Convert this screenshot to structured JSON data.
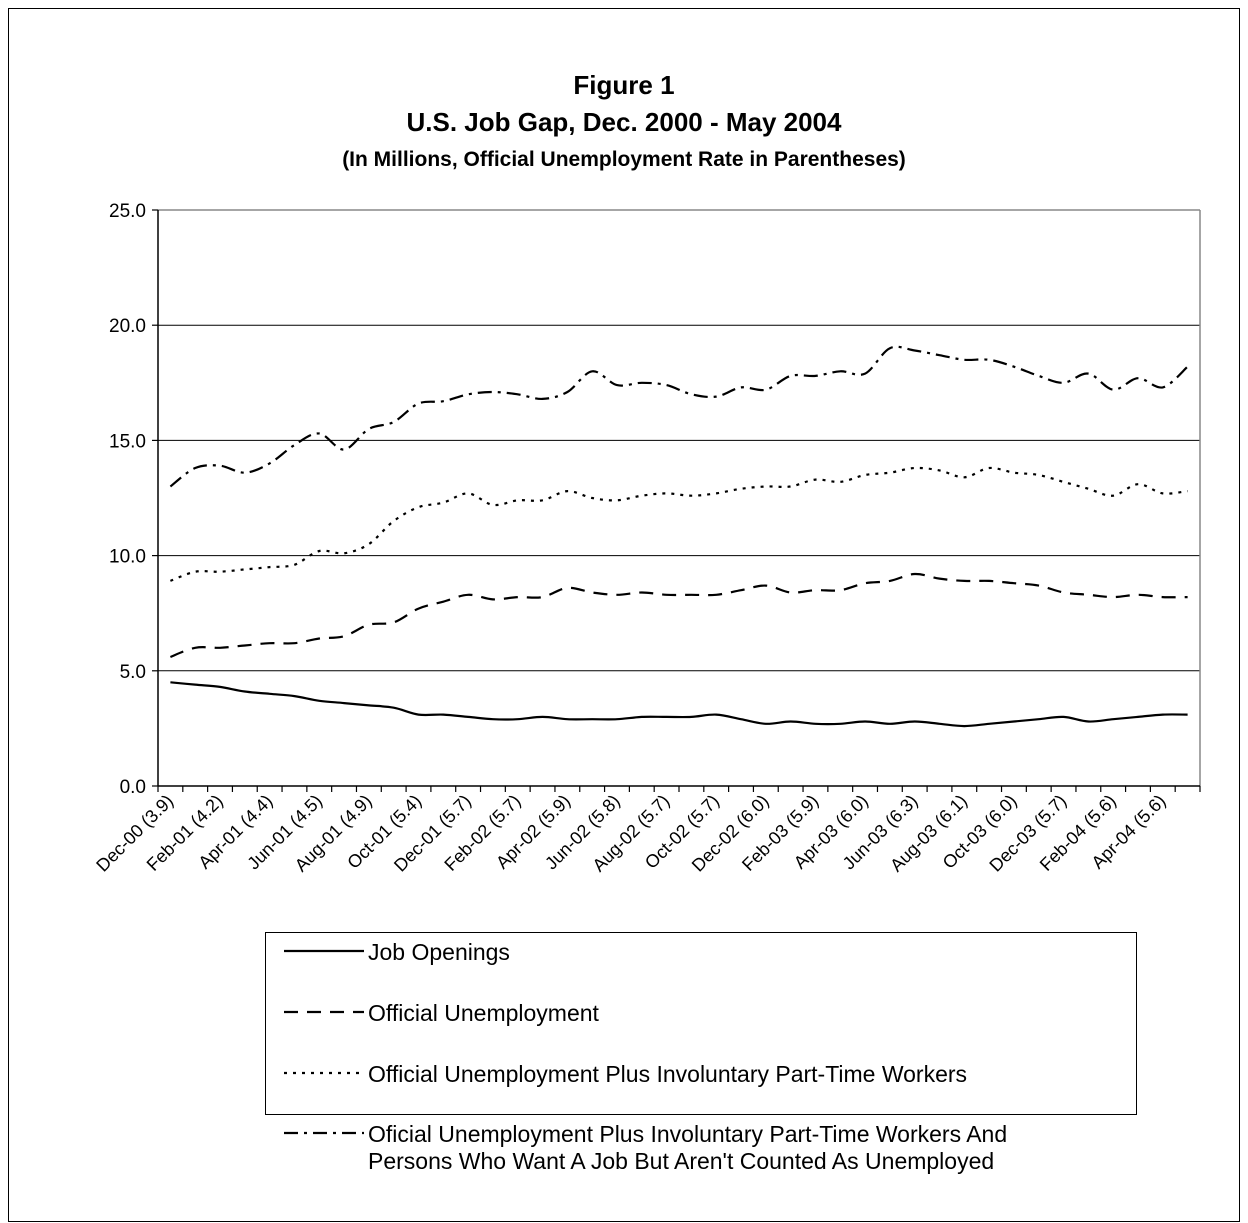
{
  "chart_data": {
    "type": "line",
    "title": "Figure 1",
    "subtitle": "U.S. Job Gap, Dec. 2000 - May 2004",
    "subsubtitle": "(In Millions, Official Unemployment Rate in Parentheses)",
    "xlabel": "",
    "ylabel": "",
    "ylim": [
      0,
      25
    ],
    "yticks": [
      "0.0",
      "5.0",
      "10.0",
      "15.0",
      "20.0",
      "25.0"
    ],
    "grid": "horizontal major gridlines",
    "legend_position": "bottom",
    "x": [
      "Dec-00",
      "Jan-01",
      "Feb-01",
      "Mar-01",
      "Apr-01",
      "May-01",
      "Jun-01",
      "Jul-01",
      "Aug-01",
      "Sep-01",
      "Oct-01",
      "Nov-01",
      "Dec-01",
      "Jan-02",
      "Feb-02",
      "Mar-02",
      "Apr-02",
      "May-02",
      "Jun-02",
      "Jul-02",
      "Aug-02",
      "Sep-02",
      "Oct-02",
      "Nov-02",
      "Dec-02",
      "Jan-03",
      "Feb-03",
      "Mar-03",
      "Apr-03",
      "May-03",
      "Jun-03",
      "Jul-03",
      "Aug-03",
      "Sep-03",
      "Oct-03",
      "Nov-03",
      "Dec-03",
      "Jan-04",
      "Feb-04",
      "Mar-04",
      "Apr-04",
      "May-04"
    ],
    "xtick_labels": [
      "Dec-00 (3.9)",
      "Feb-01 (4.2)",
      "Apr-01 (4.4)",
      "Jun-01 (4.5)",
      "Aug-01 (4.9)",
      "Oct-01 (5.4)",
      "Dec-01 (5.7)",
      "Feb-02 (5.7)",
      "Apr-02 (5.9)",
      "Jun-02 (5.8)",
      "Aug-02 (5.7)",
      "Oct-02 (5.7)",
      "Dec-02 (6.0)",
      "Feb-03 (5.9)",
      "Apr-03 (6.0)",
      "Jun-03 (6.3)",
      "Aug-03 (6.1)",
      "Oct-03 (6.0)",
      "Dec-03 (5.7)",
      "Feb-04 (5.6)",
      "Apr-04 (5.6)"
    ],
    "series": [
      {
        "name": "Job Openings",
        "style": "solid",
        "values": [
          4.5,
          4.4,
          4.3,
          4.1,
          4.0,
          3.9,
          3.7,
          3.6,
          3.5,
          3.4,
          3.1,
          3.1,
          3.0,
          2.9,
          2.9,
          3.0,
          2.9,
          2.9,
          2.9,
          3.0,
          3.0,
          3.0,
          3.1,
          2.9,
          2.7,
          2.8,
          2.7,
          2.7,
          2.8,
          2.7,
          2.8,
          2.7,
          2.6,
          2.7,
          2.8,
          2.9,
          3.0,
          2.8,
          2.9,
          3.0,
          3.1,
          3.1
        ]
      },
      {
        "name": "Official Unemployment",
        "style": "long-dash",
        "values": [
          5.6,
          6.0,
          6.0,
          6.1,
          6.2,
          6.2,
          6.4,
          6.5,
          7.0,
          7.1,
          7.7,
          8.0,
          8.3,
          8.1,
          8.2,
          8.2,
          8.6,
          8.4,
          8.3,
          8.4,
          8.3,
          8.3,
          8.3,
          8.5,
          8.7,
          8.4,
          8.5,
          8.5,
          8.8,
          8.9,
          9.2,
          9.0,
          8.9,
          8.9,
          8.8,
          8.7,
          8.4,
          8.3,
          8.2,
          8.3,
          8.2,
          8.2
        ]
      },
      {
        "name": "Official Unemployment Plus Involuntary Part-Time Workers",
        "style": "dotted",
        "values": [
          8.9,
          9.3,
          9.3,
          9.4,
          9.5,
          9.6,
          10.2,
          10.1,
          10.5,
          11.5,
          12.1,
          12.3,
          12.7,
          12.2,
          12.4,
          12.4,
          12.8,
          12.5,
          12.4,
          12.6,
          12.7,
          12.6,
          12.7,
          12.9,
          13.0,
          13.0,
          13.3,
          13.2,
          13.5,
          13.6,
          13.8,
          13.7,
          13.4,
          13.8,
          13.6,
          13.5,
          13.2,
          12.9,
          12.6,
          13.1,
          12.7,
          12.8
        ]
      },
      {
        "name": "Oficial Unemployment Plus Involuntary Part-Time Workers And Persons Who Want A Job But Aren't Counted As Unemployed",
        "style": "dash-dot",
        "values": [
          13.0,
          13.8,
          13.9,
          13.6,
          14.0,
          14.8,
          15.3,
          14.6,
          15.5,
          15.8,
          16.6,
          16.7,
          17.0,
          17.1,
          17.0,
          16.8,
          17.1,
          18.0,
          17.4,
          17.5,
          17.4,
          17.0,
          16.9,
          17.3,
          17.2,
          17.8,
          17.8,
          18.0,
          17.9,
          19.0,
          18.9,
          18.7,
          18.5,
          18.5,
          18.2,
          17.8,
          17.5,
          17.9,
          17.2,
          17.7,
          17.3,
          18.2
        ]
      }
    ]
  },
  "legend": {
    "item1": "Job Openings",
    "item2": "Official Unemployment",
    "item3": "Official Unemployment Plus Involuntary Part-Time Workers",
    "item4_line1": "Oficial Unemployment Plus Involuntary Part-Time Workers And",
    "item4_line2": "Persons Who Want A Job But Aren't Counted As Unemployed"
  }
}
